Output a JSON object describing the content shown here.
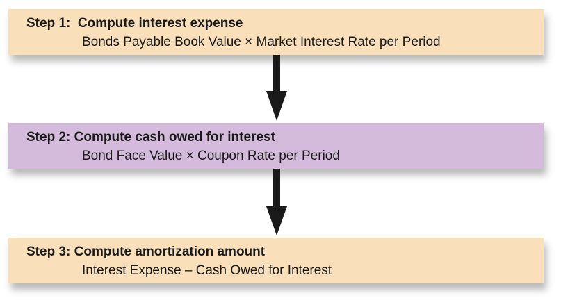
{
  "colors": {
    "step_1_fill": "#f9dfba",
    "step_2_fill": "#d4bbdc",
    "step_3_fill": "#f9dfba",
    "arrow": "#1a1a1a"
  },
  "steps": [
    {
      "label": "Step 1:",
      "title": "Compute interest expense",
      "formula": "Bonds Payable Book Value × Market Interest Rate per Period"
    },
    {
      "label": "Step 2:",
      "title": "Compute cash owed for interest",
      "formula": "Bond Face Value × Coupon Rate per Period"
    },
    {
      "label": "Step 3:",
      "title": "Compute amortization amount",
      "formula": "Interest Expense – Cash Owed for Interest"
    }
  ]
}
